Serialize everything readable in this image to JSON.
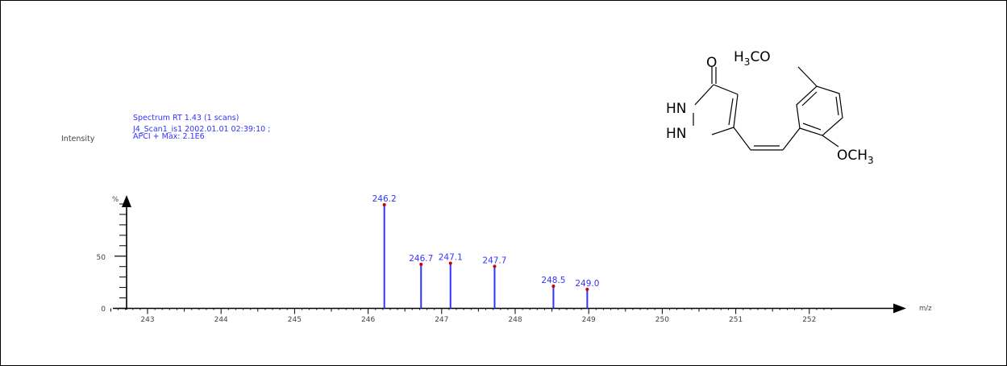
{
  "header": {
    "line1": "Spectrum RT 1.43 (1 scans)",
    "line2": "J4_Scan1_is1 2002.01.01 02:39:10 ;",
    "line3": "APCI + Max: 2.1E6",
    "intensity_label": "Intensity"
  },
  "colors": {
    "peak": "#3333ff",
    "peak_label": "#3333ff",
    "peak_marker": "#cc0000",
    "axis": "#000000",
    "axis_text": "#444444"
  },
  "structure": {
    "labels": {
      "o_top": "O",
      "h3co_h": "H",
      "h3co_sub": "3",
      "h3co_co": "CO",
      "hn1": "HN",
      "hn2": "HN",
      "och3_oc": "OCH",
      "och3_sub": "3"
    }
  },
  "chart_data": {
    "type": "bar",
    "ylabel": "%",
    "xlabel": "m/z",
    "xlim": [
      242.5,
      252.3
    ],
    "ylim": [
      0,
      100
    ],
    "x_ticks": [
      "243",
      "244",
      "245",
      "246",
      "247",
      "248",
      "249",
      "250",
      "251",
      "252"
    ],
    "y_ticks": [
      "0",
      "50"
    ],
    "peaks": [
      {
        "x": 246.22,
        "y": 100,
        "label": "246.2"
      },
      {
        "x": 246.72,
        "y": 43,
        "label": "246.7"
      },
      {
        "x": 247.12,
        "y": 44,
        "label": "247.1"
      },
      {
        "x": 247.72,
        "y": 41,
        "label": "247.7"
      },
      {
        "x": 248.52,
        "y": 22,
        "label": "248.5"
      },
      {
        "x": 248.98,
        "y": 19,
        "label": "249.0"
      }
    ]
  }
}
